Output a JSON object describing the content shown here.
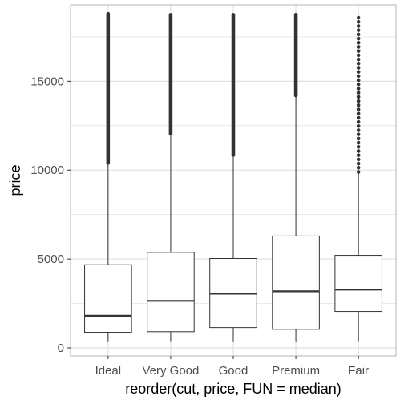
{
  "chart_data": {
    "type": "box",
    "xlabel": "reorder(cut, price, FUN = median)",
    "ylabel": "price",
    "ylim": [
      -450,
      19300
    ],
    "y_ticks": [
      0,
      5000,
      10000,
      15000
    ],
    "grid": true,
    "categories": [
      "Ideal",
      "Very Good",
      "Good",
      "Premium",
      "Fair"
    ],
    "boxes": [
      {
        "category": "Ideal",
        "min": 326,
        "q1": 878,
        "median": 1810,
        "q3": 4678,
        "max": 10400,
        "outliers_range": [
          10400,
          18800
        ]
      },
      {
        "category": "Very Good",
        "min": 336,
        "q1": 912,
        "median": 2648,
        "q3": 5373,
        "max": 12050,
        "outliers_range": [
          12050,
          18800
        ]
      },
      {
        "category": "Good",
        "min": 327,
        "q1": 1145,
        "median": 3050,
        "q3": 5028,
        "max": 10850,
        "outliers_range": [
          10850,
          18800
        ]
      },
      {
        "category": "Premium",
        "min": 326,
        "q1": 1046,
        "median": 3185,
        "q3": 6296,
        "max": 14200,
        "outliers_range": [
          14200,
          18800
        ]
      },
      {
        "category": "Fair",
        "min": 337,
        "q1": 2050,
        "median": 3282,
        "q3": 5206,
        "max": 9900,
        "outliers_range": [
          9900,
          18600
        ]
      }
    ],
    "colors": {
      "box_fill": "#ffffff",
      "line": "#333333",
      "outlier": "#333333",
      "grid": "#dedede",
      "panel_border": "#b3b3b3"
    }
  }
}
